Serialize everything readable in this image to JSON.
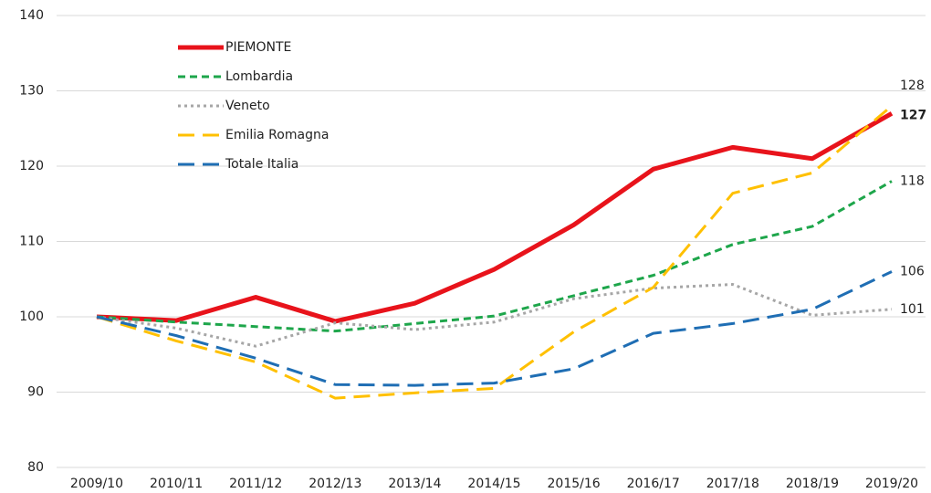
{
  "chart_data": {
    "type": "line",
    "categories": [
      "2009/10",
      "2010/11",
      "2011/12",
      "2012/13",
      "2013/14",
      "2014/15",
      "2015/16",
      "2016/17",
      "2017/18",
      "2018/19",
      "2019/20"
    ],
    "series": [
      {
        "name": "PIEMONTE",
        "color": "#e8131b",
        "style": "solid",
        "values": [
          100,
          99.5,
          102.6,
          99.4,
          101.8,
          106.3,
          112.2,
          119.6,
          122.5,
          121,
          127
        ]
      },
      {
        "name": "Lombardia",
        "color": "#1ea64b",
        "style": "dashed",
        "values": [
          100,
          99.3,
          98.7,
          98.1,
          99.1,
          100.1,
          102.8,
          105.5,
          109.6,
          112,
          118
        ]
      },
      {
        "name": "Veneto",
        "color": "#a6a6a6",
        "style": "dotted",
        "values": [
          100,
          98.5,
          96.1,
          99.2,
          98.3,
          99.3,
          102.4,
          103.8,
          104.3,
          100.2,
          101
        ]
      },
      {
        "name": "Emilia Romagna",
        "color": "#ffc000",
        "style": "longdash",
        "values": [
          100,
          96.8,
          94,
          89.2,
          89.9,
          90.5,
          98,
          103.9,
          116.4,
          119.1,
          128
        ]
      },
      {
        "name": "Totale Italia",
        "color": "#1f6eb4",
        "style": "longdash",
        "values": [
          100,
          97.5,
          94.5,
          91,
          90.9,
          91.2,
          93.1,
          97.8,
          99.1,
          101,
          106
        ]
      }
    ],
    "ylim": [
      80,
      140
    ],
    "yticks": [
      80,
      90,
      100,
      110,
      120,
      130,
      140
    ],
    "grid": true,
    "legend": "upper-left"
  }
}
